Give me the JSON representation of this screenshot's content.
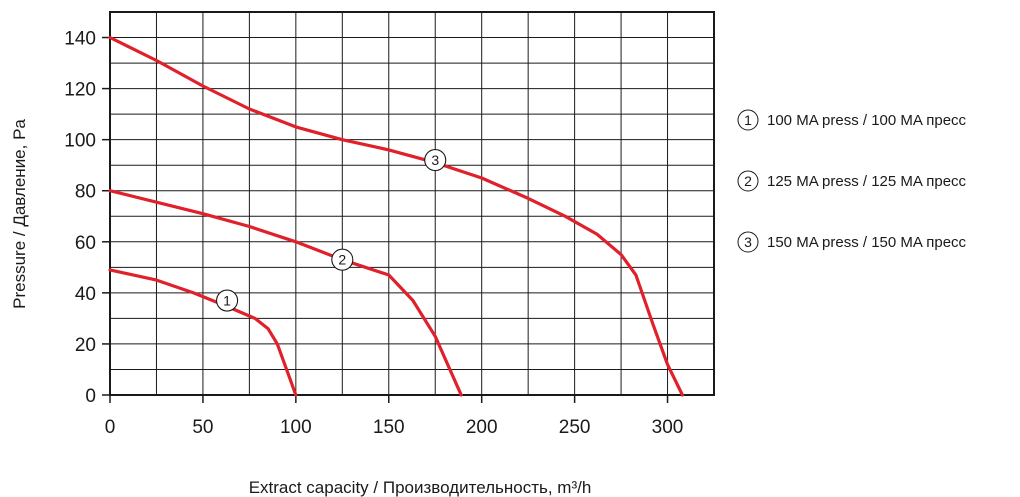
{
  "chart_data": {
    "type": "line",
    "xlabel": "Extract capacity / Производительность, m³/h",
    "ylabel": "Pressure / Давление, Pa",
    "xlim": [
      0,
      325
    ],
    "ylim": [
      0,
      150
    ],
    "grid": true,
    "x_ticks": [
      0,
      50,
      100,
      150,
      200,
      250,
      300
    ],
    "y_ticks": [
      0,
      20,
      40,
      60,
      80,
      100,
      120,
      140
    ],
    "x_grid_step": 25,
    "y_grid_step": 10,
    "legend_position": "right",
    "series": [
      {
        "name": "100 MA  press / 100 MA пресс",
        "marker": "1",
        "marker_at": [
          63,
          37
        ],
        "color": "#e0202a",
        "x": [
          0,
          25,
          45,
          62,
          78,
          85,
          90,
          95,
          100
        ],
        "y": [
          49,
          45,
          40,
          35,
          30,
          26,
          20,
          10,
          0
        ]
      },
      {
        "name": "125 MA  press / 125 MA  пресс",
        "marker": "2",
        "marker_at": [
          125,
          53
        ],
        "color": "#e0202a",
        "x": [
          0,
          50,
          75,
          100,
          125,
          150,
          163,
          175,
          189
        ],
        "y": [
          80,
          71,
          66,
          60,
          53,
          47,
          37,
          23,
          0
        ]
      },
      {
        "name": "150 MA press / 150 MA  пресс",
        "marker": "3",
        "marker_at": [
          175,
          92
        ],
        "color": "#e0202a",
        "x": [
          0,
          25,
          50,
          75,
          100,
          125,
          150,
          175,
          200,
          225,
          245,
          262,
          275,
          283,
          292,
          300,
          308
        ],
        "y": [
          140,
          131,
          121,
          112,
          105,
          100,
          96,
          91,
          85,
          77,
          70,
          63,
          55,
          47,
          28,
          12,
          0
        ]
      }
    ]
  }
}
